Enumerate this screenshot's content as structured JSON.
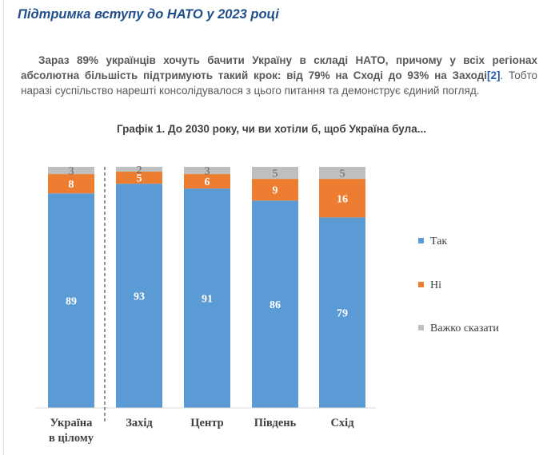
{
  "heading": "Підтримка вступу до НАТО у 2023 році",
  "paragraph": {
    "bold_part": "Зараз 89% українців хочуть бачити Україну в складі НАТО, причому у всіх регіонах абсолютна більшість підтримують такий крок: від 79% на Сході до 93% на Заході",
    "ref": "[2]",
    "rest": ". Тобто наразі суспільство нарешті консолідувалося з цього питання та демонструє єдиний погляд."
  },
  "chart_data": {
    "type": "bar",
    "stacked": true,
    "title": "Графік 1. До 2030 року, чи ви хотіли б, щоб Україна була...",
    "categories": [
      "Україна в цілому",
      "Захід",
      "Центр",
      "Південь",
      "Схід"
    ],
    "series": [
      {
        "name": "Так",
        "color": "#5b9bd5",
        "values": [
          89,
          93,
          91,
          86,
          79
        ]
      },
      {
        "name": "Ні",
        "color": "#ed7d31",
        "values": [
          8,
          5,
          6,
          9,
          16
        ]
      },
      {
        "name": "Важко сказати",
        "color": "#bfbfbf",
        "values": [
          3,
          2,
          3,
          5,
          5
        ]
      }
    ],
    "ylim": [
      0,
      100
    ],
    "legend": "right",
    "separator_after_first": true
  }
}
